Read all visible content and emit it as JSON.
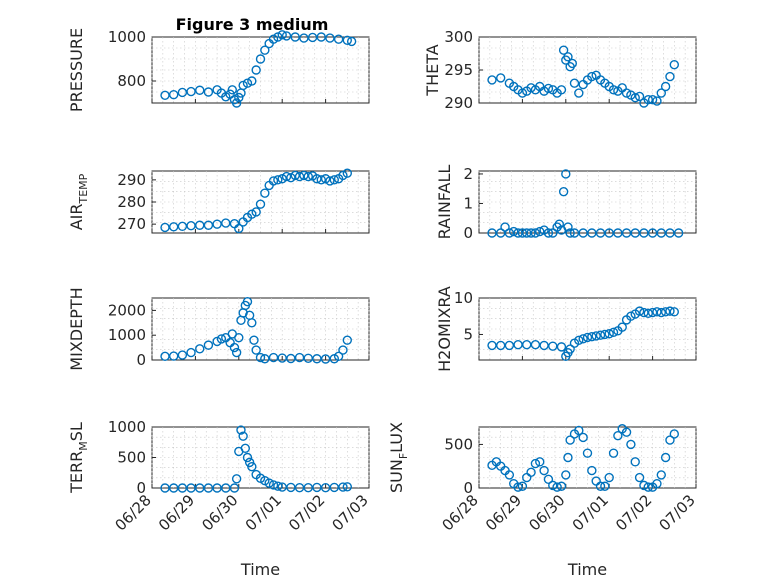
{
  "figure": {
    "title": "Figure 3 medium",
    "marker_color": "#0072bd",
    "x_tick_labels": [
      "06/28",
      "06/29",
      "06/30",
      "07/01",
      "07/02",
      "07/03"
    ]
  },
  "chart_data": [
    {
      "type": "scatter",
      "id": "pressure",
      "ylabel": "PRESSURE",
      "ylabel_sub": "",
      "xlabel": "",
      "ylim": [
        700,
        1000
      ],
      "yticks": [
        800,
        1000
      ],
      "grid": true,
      "x": [
        0.3,
        0.5,
        0.7,
        0.9,
        1.1,
        1.3,
        1.5,
        1.6,
        1.7,
        1.8,
        1.85,
        1.9,
        1.95,
        2.0,
        2.05,
        2.1,
        2.2,
        2.3,
        2.4,
        2.5,
        2.6,
        2.7,
        2.8,
        2.9,
        3.0,
        3.1,
        3.3,
        3.5,
        3.7,
        3.9,
        4.1,
        4.3,
        4.5,
        4.6
      ],
      "y": [
        735,
        738,
        748,
        752,
        758,
        750,
        760,
        745,
        728,
        740,
        760,
        715,
        700,
        725,
        745,
        780,
        790,
        800,
        850,
        900,
        940,
        970,
        990,
        1000,
        1010,
        1005,
        1000,
        995,
        998,
        1000,
        995,
        990,
        985,
        980
      ]
    },
    {
      "type": "scatter",
      "id": "theta",
      "ylabel": "THETA",
      "ylabel_sub": "",
      "xlabel": "",
      "ylim": [
        290,
        300
      ],
      "yticks": [
        290,
        295,
        300
      ],
      "grid": true,
      "x": [
        0.3,
        0.5,
        0.7,
        0.8,
        0.9,
        1.0,
        1.1,
        1.2,
        1.3,
        1.4,
        1.5,
        1.6,
        1.7,
        1.8,
        1.9,
        1.95,
        2.0,
        2.05,
        2.1,
        2.15,
        2.2,
        2.3,
        2.4,
        2.5,
        2.6,
        2.7,
        2.8,
        2.9,
        3.0,
        3.1,
        3.2,
        3.3,
        3.4,
        3.5,
        3.6,
        3.7,
        3.8,
        3.9,
        4.0,
        4.1,
        4.2,
        4.3,
        4.4,
        4.5
      ],
      "y": [
        293.5,
        293.8,
        293.0,
        292.5,
        292.0,
        291.5,
        291.8,
        292.3,
        292.0,
        292.5,
        291.8,
        292.2,
        292.0,
        291.5,
        292.0,
        298.0,
        296.5,
        297.0,
        295.5,
        296.0,
        293.0,
        291.5,
        292.8,
        293.5,
        294.0,
        294.2,
        293.5,
        293.0,
        292.5,
        292.0,
        291.8,
        292.3,
        291.5,
        291.2,
        290.8,
        291.0,
        290.0,
        290.5,
        290.5,
        290.3,
        291.5,
        292.5,
        294.0,
        295.8
      ]
    },
    {
      "type": "scatter",
      "id": "air_temp",
      "ylabel": "AIR",
      "ylabel_sub": "TEMP",
      "xlabel": "",
      "ylim": [
        266,
        294
      ],
      "yticks": [
        270,
        280,
        290
      ],
      "grid": true,
      "x": [
        0.3,
        0.5,
        0.7,
        0.9,
        1.1,
        1.3,
        1.5,
        1.7,
        1.9,
        2.0,
        2.1,
        2.2,
        2.3,
        2.4,
        2.5,
        2.6,
        2.7,
        2.8,
        2.9,
        3.0,
        3.1,
        3.2,
        3.3,
        3.4,
        3.5,
        3.6,
        3.7,
        3.8,
        3.9,
        4.0,
        4.1,
        4.2,
        4.3,
        4.4,
        4.5
      ],
      "y": [
        268.5,
        268.8,
        269.0,
        269.3,
        269.5,
        269.5,
        270.0,
        270.5,
        270.2,
        268.0,
        271.0,
        273.0,
        274.5,
        275.5,
        279.0,
        284.0,
        287.5,
        289.5,
        290.0,
        290.5,
        291.5,
        291.0,
        292.0,
        291.5,
        292.0,
        291.5,
        291.8,
        290.5,
        290.0,
        290.5,
        289.5,
        290.0,
        290.5,
        292.0,
        293.0
      ]
    },
    {
      "type": "scatter",
      "id": "rainfall",
      "ylabel": "RAINFALL",
      "ylabel_sub": "",
      "xlabel": "",
      "ylim": [
        0,
        2.1
      ],
      "yticks": [
        0,
        1,
        2
      ],
      "grid": true,
      "x": [
        0.3,
        0.5,
        0.6,
        0.7,
        0.8,
        0.9,
        1.0,
        1.1,
        1.2,
        1.3,
        1.4,
        1.5,
        1.6,
        1.7,
        1.8,
        1.85,
        1.9,
        1.95,
        2.0,
        2.05,
        2.1,
        2.2,
        2.4,
        2.6,
        2.8,
        3.0,
        3.2,
        3.4,
        3.6,
        3.8,
        4.0,
        4.2,
        4.4,
        4.6
      ],
      "y": [
        0,
        0,
        0.2,
        0,
        0.05,
        0,
        0,
        0,
        0,
        0,
        0.05,
        0.1,
        0,
        0,
        0.2,
        0.3,
        0.1,
        1.4,
        2.0,
        0.2,
        0,
        0,
        0,
        0,
        0,
        0,
        0,
        0,
        0,
        0,
        0,
        0,
        0,
        0
      ]
    },
    {
      "type": "scatter",
      "id": "mixdepth",
      "ylabel": "MIXDEPTH",
      "ylabel_sub": "",
      "xlabel": "",
      "ylim": [
        0,
        2500
      ],
      "yticks": [
        0,
        1000,
        2000
      ],
      "grid": true,
      "x": [
        0.3,
        0.5,
        0.7,
        0.9,
        1.1,
        1.3,
        1.5,
        1.6,
        1.7,
        1.8,
        1.85,
        1.9,
        1.95,
        2.0,
        2.05,
        2.1,
        2.15,
        2.2,
        2.25,
        2.3,
        2.35,
        2.4,
        2.5,
        2.6,
        2.8,
        3.0,
        3.2,
        3.4,
        3.6,
        3.8,
        4.0,
        4.2,
        4.3,
        4.4,
        4.5
      ],
      "y": [
        150,
        160,
        200,
        300,
        450,
        600,
        750,
        850,
        900,
        700,
        1050,
        500,
        300,
        900,
        1600,
        1900,
        2200,
        2350,
        1800,
        1500,
        800,
        400,
        100,
        50,
        100,
        80,
        60,
        100,
        70,
        50,
        40,
        50,
        150,
        400,
        800
      ]
    },
    {
      "type": "scatter",
      "id": "h2omixra",
      "ylabel": "H2OMIXRA",
      "ylabel_sub": "",
      "xlabel": "",
      "ylim": [
        1.5,
        10
      ],
      "yticks": [
        5,
        10
      ],
      "grid": true,
      "x": [
        0.3,
        0.5,
        0.7,
        0.9,
        1.1,
        1.3,
        1.5,
        1.7,
        1.9,
        2.0,
        2.05,
        2.1,
        2.2,
        2.3,
        2.4,
        2.5,
        2.6,
        2.7,
        2.8,
        2.9,
        3.0,
        3.1,
        3.2,
        3.3,
        3.4,
        3.5,
        3.6,
        3.7,
        3.8,
        3.9,
        4.0,
        4.1,
        4.2,
        4.3,
        4.4,
        4.5
      ],
      "y": [
        3.5,
        3.5,
        3.5,
        3.6,
        3.6,
        3.6,
        3.5,
        3.4,
        3.3,
        2.0,
        2.5,
        3.0,
        3.8,
        4.2,
        4.4,
        4.6,
        4.7,
        4.8,
        4.9,
        5.0,
        5.1,
        5.3,
        5.5,
        6.0,
        7.0,
        7.5,
        7.8,
        8.2,
        8.0,
        7.9,
        8.0,
        8.1,
        8.0,
        8.1,
        8.2,
        8.1
      ]
    },
    {
      "type": "scatter",
      "id": "terr_msl",
      "ylabel": "TERR",
      "ylabel_sub": "M",
      "ylabel_suffix": "SL",
      "xlabel": "Time",
      "ylim": [
        0,
        1000
      ],
      "yticks": [
        0,
        500,
        1000
      ],
      "grid": true,
      "x": [
        0.3,
        0.5,
        0.7,
        0.9,
        1.1,
        1.3,
        1.5,
        1.7,
        1.9,
        1.95,
        2.0,
        2.05,
        2.1,
        2.15,
        2.2,
        2.25,
        2.3,
        2.4,
        2.5,
        2.6,
        2.7,
        2.8,
        2.9,
        3.0,
        3.2,
        3.4,
        3.6,
        3.8,
        4.0,
        4.2,
        4.4,
        4.5
      ],
      "y": [
        0,
        0,
        0,
        0,
        0,
        0,
        0,
        0,
        0,
        150,
        600,
        950,
        850,
        650,
        500,
        420,
        350,
        220,
        160,
        120,
        80,
        50,
        30,
        15,
        10,
        5,
        5,
        10,
        5,
        10,
        15,
        20
      ]
    },
    {
      "type": "scatter",
      "id": "sun_flux",
      "ylabel": "SUN",
      "ylabel_sub": "F",
      "ylabel_suffix": "LUX",
      "xlabel": "Time",
      "ylim": [
        0,
        700
      ],
      "yticks": [
        0,
        500
      ],
      "grid": true,
      "x": [
        0.3,
        0.4,
        0.5,
        0.6,
        0.7,
        0.8,
        0.9,
        1.0,
        1.1,
        1.2,
        1.3,
        1.4,
        1.5,
        1.6,
        1.7,
        1.8,
        1.9,
        2.0,
        2.05,
        2.1,
        2.2,
        2.3,
        2.4,
        2.5,
        2.6,
        2.7,
        2.8,
        2.9,
        3.0,
        3.1,
        3.2,
        3.3,
        3.4,
        3.5,
        3.6,
        3.7,
        3.8,
        3.9,
        4.0,
        4.1,
        4.2,
        4.3,
        4.4,
        4.5
      ],
      "y": [
        260,
        300,
        250,
        200,
        150,
        50,
        10,
        20,
        120,
        180,
        280,
        300,
        200,
        100,
        30,
        10,
        20,
        150,
        350,
        550,
        620,
        660,
        580,
        400,
        200,
        80,
        20,
        20,
        120,
        400,
        600,
        680,
        640,
        500,
        300,
        120,
        30,
        10,
        10,
        50,
        150,
        350,
        550,
        620
      ]
    }
  ]
}
